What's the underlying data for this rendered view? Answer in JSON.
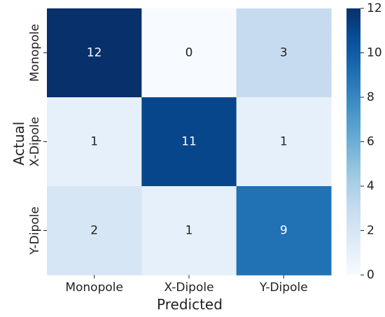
{
  "chart_data": {
    "type": "heatmap",
    "title": "",
    "xlabel": "Predicted",
    "ylabel": "Actual",
    "x_categories": [
      "Monopole",
      "X-Dipole",
      "Y-Dipole"
    ],
    "y_categories": [
      "Monopole",
      "X-Dipole",
      "Y-Dipole"
    ],
    "values": [
      [
        12,
        0,
        3
      ],
      [
        1,
        11,
        1
      ],
      [
        2,
        1,
        9
      ]
    ],
    "colorbar": {
      "min": 0,
      "max": 12,
      "ticks": [
        0,
        2,
        4,
        6,
        8,
        10,
        12
      ]
    },
    "colormap": "Blues",
    "colors": {
      "low": "#f7fbff",
      "high": "#08306b",
      "text_dark": "#222222",
      "text_light": "#ffffff"
    },
    "grid": false
  }
}
